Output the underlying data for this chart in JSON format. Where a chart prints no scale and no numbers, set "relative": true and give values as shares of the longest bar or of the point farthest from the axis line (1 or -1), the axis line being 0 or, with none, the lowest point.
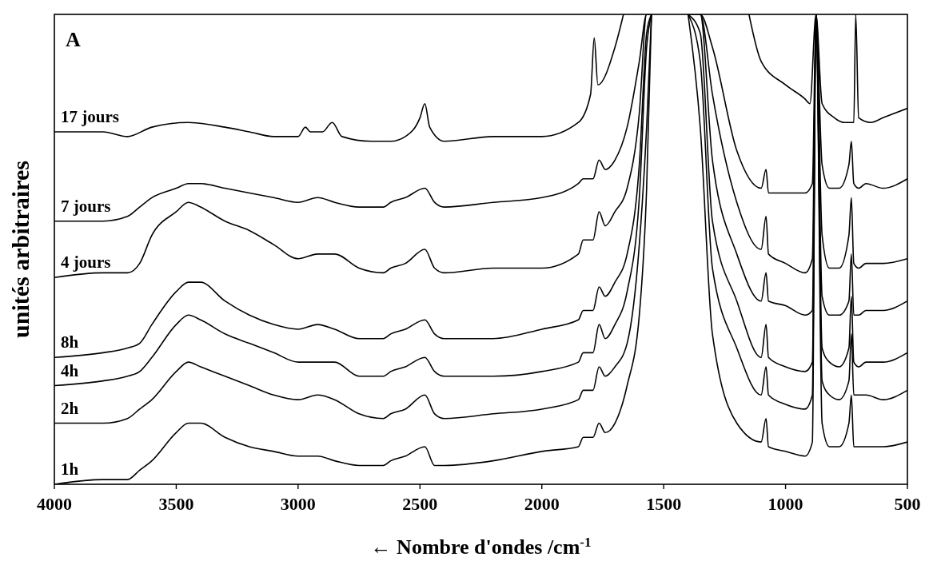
{
  "chart_data": {
    "type": "line",
    "title": "A",
    "xlabel": "← Nombre d'ondes /cm$^{-1}$",
    "ylabel": "unités arbitraires",
    "relative": true,
    "xlim": [
      4000,
      500
    ],
    "xticks": [
      4000,
      3500,
      3000,
      2500,
      2000,
      1500,
      1000,
      500
    ],
    "legend": false,
    "grid": false,
    "line_style": "solid",
    "x": [
      4000,
      3800,
      3700,
      3650,
      3600,
      3500,
      3450,
      3400,
      3300,
      3200,
      3100,
      3000,
      2920,
      2850,
      2750,
      2650,
      2620,
      2560,
      2480,
      2440,
      2400,
      2200,
      2000,
      1850,
      1830,
      1790,
      1765,
      1740,
      1700,
      1650,
      1600,
      1570,
      1550,
      1500,
      1400,
      1350,
      1300,
      1200,
      1100,
      1080,
      1070,
      1000,
      920,
      890,
      875,
      850,
      820,
      780,
      740,
      730,
      720,
      700,
      670,
      600,
      500
    ],
    "series": [
      {
        "name": "17 jours",
        "color": "#000000",
        "x": [
          4000,
          3800,
          3700,
          3600,
          3450,
          3300,
          3200,
          3100,
          3000,
          2970,
          2950,
          2900,
          2860,
          2820,
          2700,
          2620,
          2560,
          2500,
          2480,
          2460,
          2400,
          2200,
          2000,
          1850,
          1800,
          1785,
          1770,
          1700,
          1665,
          1600,
          1150,
          1100,
          1000,
          920,
          900,
          875,
          850,
          800,
          760,
          720,
          712,
          700,
          650,
          600,
          500
        ],
        "values": [
          0.75,
          0.75,
          0.74,
          0.76,
          0.77,
          0.76,
          0.75,
          0.74,
          0.74,
          0.76,
          0.75,
          0.75,
          0.77,
          0.74,
          0.73,
          0.73,
          0.74,
          0.78,
          0.81,
          0.76,
          0.73,
          0.74,
          0.74,
          0.77,
          0.83,
          0.95,
          0.85,
          0.93,
          1,
          null,
          1,
          0.9,
          0.85,
          0.82,
          0.81,
          1,
          0.81,
          0.78,
          0.77,
          0.77,
          1,
          0.78,
          0.77,
          0.78,
          0.8
        ]
      },
      {
        "name": "7 jours",
        "color": "#000000",
        "values": [
          0.56,
          0.56,
          0.57,
          0.59,
          0.61,
          0.63,
          0.64,
          0.64,
          0.63,
          0.62,
          0.61,
          0.6,
          0.61,
          0.6,
          0.59,
          0.59,
          0.6,
          0.61,
          0.63,
          0.6,
          0.59,
          0.6,
          0.61,
          0.64,
          0.65,
          0.65,
          0.69,
          0.67,
          0.69,
          0.76,
          0.9,
          1,
          1,
          null,
          1,
          1,
          0.93,
          0.71,
          0.63,
          0.67,
          0.62,
          0.62,
          0.62,
          0.64,
          1,
          0.68,
          0.63,
          0.63,
          0.68,
          0.73,
          0.64,
          0.63,
          0.64,
          0.63,
          0.65
        ]
      },
      {
        "name": "4 jours",
        "color": "#000000",
        "values": [
          0.44,
          0.45,
          0.45,
          0.47,
          0.53,
          0.58,
          0.6,
          0.59,
          0.56,
          0.54,
          0.51,
          0.48,
          0.49,
          0.49,
          0.46,
          0.45,
          0.46,
          0.47,
          0.5,
          0.46,
          0.45,
          0.46,
          0.46,
          0.49,
          0.52,
          0.52,
          0.58,
          0.55,
          0.58,
          0.63,
          0.79,
          1,
          1,
          null,
          1,
          1,
          0.83,
          0.6,
          0.5,
          0.57,
          0.49,
          0.47,
          0.45,
          0.48,
          1,
          0.53,
          0.46,
          0.46,
          0.53,
          0.61,
          0.47,
          0.46,
          0.47,
          0.47,
          0.48
        ]
      },
      {
        "name": "8h",
        "color": "#000000",
        "values": [
          0.27,
          0.28,
          0.29,
          0.3,
          0.34,
          0.41,
          0.43,
          0.43,
          0.39,
          0.36,
          0.34,
          0.33,
          0.34,
          0.33,
          0.31,
          0.31,
          0.32,
          0.33,
          0.35,
          0.32,
          0.31,
          0.31,
          0.33,
          0.35,
          0.37,
          0.37,
          0.42,
          0.4,
          0.43,
          0.49,
          0.68,
          0.96,
          1,
          null,
          1,
          1,
          0.69,
          0.49,
          0.39,
          0.45,
          0.39,
          0.38,
          0.36,
          0.37,
          1,
          0.4,
          0.36,
          0.36,
          0.39,
          0.49,
          0.36,
          0.36,
          0.37,
          0.37,
          0.39
        ]
      },
      {
        "name": "4h",
        "color": "#000000",
        "values": [
          0.21,
          0.22,
          0.23,
          0.24,
          0.27,
          0.34,
          0.36,
          0.35,
          0.32,
          0.3,
          0.28,
          0.26,
          0.26,
          0.26,
          0.23,
          0.23,
          0.24,
          0.25,
          0.27,
          0.24,
          0.23,
          0.23,
          0.24,
          0.26,
          0.28,
          0.28,
          0.34,
          0.31,
          0.34,
          0.41,
          0.61,
          0.93,
          1,
          null,
          1,
          0.96,
          0.56,
          0.39,
          0.27,
          0.34,
          0.27,
          0.25,
          0.24,
          0.26,
          1,
          0.29,
          0.26,
          0.25,
          0.29,
          0.4,
          0.26,
          0.25,
          0.26,
          0.26,
          0.28
        ]
      },
      {
        "name": "2h",
        "color": "#000000",
        "values": [
          0.13,
          0.13,
          0.14,
          0.16,
          0.18,
          0.24,
          0.26,
          0.25,
          0.23,
          0.21,
          0.19,
          0.18,
          0.19,
          0.18,
          0.15,
          0.14,
          0.15,
          0.16,
          0.19,
          0.15,
          0.14,
          0.15,
          0.16,
          0.18,
          0.2,
          0.2,
          0.25,
          0.23,
          0.25,
          0.3,
          0.51,
          0.76,
          1,
          null,
          1,
          0.9,
          0.46,
          0.29,
          0.19,
          0.25,
          0.19,
          0.17,
          0.16,
          0.19,
          1,
          0.22,
          0.19,
          0.18,
          0.22,
          0.32,
          0.19,
          0.19,
          0.19,
          0.18,
          0.2
        ]
      },
      {
        "name": "1h",
        "color": "#000000",
        "values": [
          0,
          0.01,
          0.01,
          0.03,
          0.05,
          0.11,
          0.13,
          0.13,
          0.1,
          0.08,
          0.07,
          0.06,
          0.06,
          0.05,
          0.04,
          0.04,
          0.05,
          0.06,
          0.08,
          0.04,
          0.04,
          0.05,
          0.07,
          0.08,
          0.1,
          0.1,
          0.13,
          0.11,
          0.13,
          0.21,
          0.36,
          0.63,
          1,
          null,
          1,
          0.76,
          0.32,
          0.13,
          0.09,
          0.14,
          0.08,
          0.07,
          0.06,
          0.09,
          1,
          0.13,
          0.08,
          0.08,
          0.13,
          0.19,
          0.08,
          0.08,
          0.08,
          0.08,
          0.09
        ]
      }
    ]
  }
}
